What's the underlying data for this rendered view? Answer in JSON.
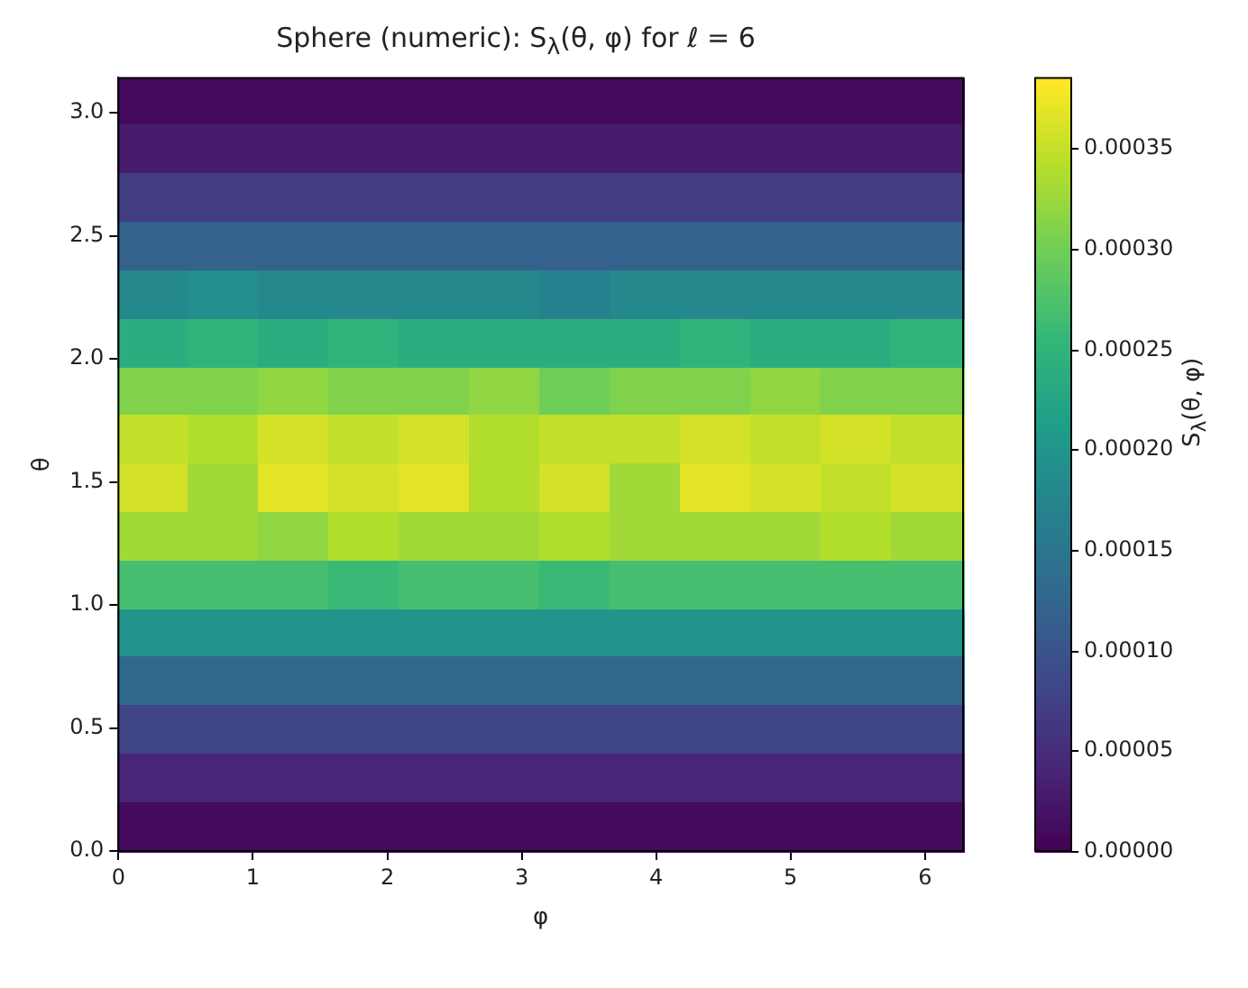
{
  "chart_data": {
    "type": "heatmap",
    "title": "Sphere (numeric): S$_{λ}$(θ, φ) for ℓ = 6",
    "xlabel": "φ",
    "ylabel": "θ",
    "clabel": "S$_{λ}$(θ, φ)",
    "xlim": [
      0,
      6.2832
    ],
    "xticks": [
      0,
      1,
      2,
      3,
      4,
      5,
      6
    ],
    "ylim": [
      0,
      3.1416
    ],
    "yticks": [
      {
        "value": 0,
        "label": "0.0"
      },
      0.5,
      {
        "value": 1,
        "label": "1.0"
      },
      1.5,
      {
        "value": 2,
        "label": "2.0"
      },
      2.5,
      {
        "value": 3,
        "label": "3.0"
      }
    ],
    "clim": [
      0,
      0.000385
    ],
    "cticks": [
      {
        "value": 0,
        "label": "0.00000"
      },
      {
        "value": 5e-05,
        "label": "0.00005"
      },
      {
        "value": 0.0001,
        "label": "0.00010"
      },
      {
        "value": 0.00015,
        "label": "0.00015"
      },
      {
        "value": 0.0002,
        "label": "0.00020"
      },
      {
        "value": 0.00025,
        "label": "0.00025"
      },
      {
        "value": 0.0003,
        "label": "0.00030"
      },
      {
        "value": 0.00035,
        "label": "0.00035"
      }
    ],
    "cells": [
      [
        1e-05,
        1e-05,
        1e-05,
        1e-05,
        1e-05,
        1e-05,
        1e-05,
        1e-05,
        1e-05,
        1e-05,
        1e-05,
        1e-05
      ],
      [
        3e-05,
        3e-05,
        3e-05,
        3e-05,
        3e-05,
        3e-05,
        3e-05,
        3e-05,
        3e-05,
        3e-05,
        3e-05,
        3e-05
      ],
      [
        7e-05,
        7e-05,
        7e-05,
        7e-05,
        7e-05,
        7e-05,
        7e-05,
        7e-05,
        7e-05,
        7e-05,
        7e-05,
        7e-05
      ],
      [
        0.00012,
        0.00012,
        0.00012,
        0.00012,
        0.00012,
        0.00012,
        0.00012,
        0.00012,
        0.00012,
        0.00012,
        0.00012,
        0.00012
      ],
      [
        0.00018,
        0.00019,
        0.00018,
        0.00018,
        0.00018,
        0.00018,
        0.00017,
        0.00018,
        0.00018,
        0.00018,
        0.00018,
        0.00018
      ],
      [
        0.00024,
        0.00025,
        0.00024,
        0.00025,
        0.00024,
        0.00024,
        0.00024,
        0.00024,
        0.00025,
        0.00024,
        0.00024,
        0.00025
      ],
      [
        0.00031,
        0.00031,
        0.00032,
        0.00031,
        0.00031,
        0.00032,
        0.0003,
        0.00031,
        0.00031,
        0.00032,
        0.00031,
        0.00031
      ],
      [
        0.00035,
        0.00034,
        0.00036,
        0.00035,
        0.00036,
        0.00034,
        0.00035,
        0.00035,
        0.00036,
        0.00035,
        0.00036,
        0.00035
      ],
      [
        0.00036,
        0.00033,
        0.00037,
        0.00036,
        0.00037,
        0.00034,
        0.00036,
        0.00033,
        0.00037,
        0.00036,
        0.00035,
        0.00036
      ],
      [
        0.00033,
        0.00033,
        0.00032,
        0.00034,
        0.00033,
        0.00033,
        0.00034,
        0.00033,
        0.00033,
        0.00033,
        0.00034,
        0.00033
      ],
      [
        0.00027,
        0.00027,
        0.00027,
        0.00026,
        0.00027,
        0.00027,
        0.00026,
        0.00027,
        0.00027,
        0.00027,
        0.00027,
        0.00027
      ],
      [
        0.0002,
        0.0002,
        0.0002,
        0.0002,
        0.0002,
        0.0002,
        0.0002,
        0.0002,
        0.0002,
        0.0002,
        0.0002,
        0.0002
      ],
      [
        0.00013,
        0.00013,
        0.00013,
        0.00013,
        0.00013,
        0.00013,
        0.00013,
        0.00013,
        0.00013,
        0.00013,
        0.00013,
        0.00013
      ],
      [
        8e-05,
        8e-05,
        8e-05,
        8e-05,
        8e-05,
        8e-05,
        8e-05,
        8e-05,
        8e-05,
        8e-05,
        8e-05,
        8e-05
      ],
      [
        4e-05,
        4e-05,
        4e-05,
        4e-05,
        4e-05,
        4e-05,
        4e-05,
        4e-05,
        4e-05,
        4e-05,
        4e-05,
        4e-05
      ],
      [
        1e-05,
        1e-05,
        1e-05,
        1e-05,
        1e-05,
        1e-05,
        1e-05,
        1e-05,
        1e-05,
        1e-05,
        1e-05,
        1e-05
      ]
    ]
  }
}
